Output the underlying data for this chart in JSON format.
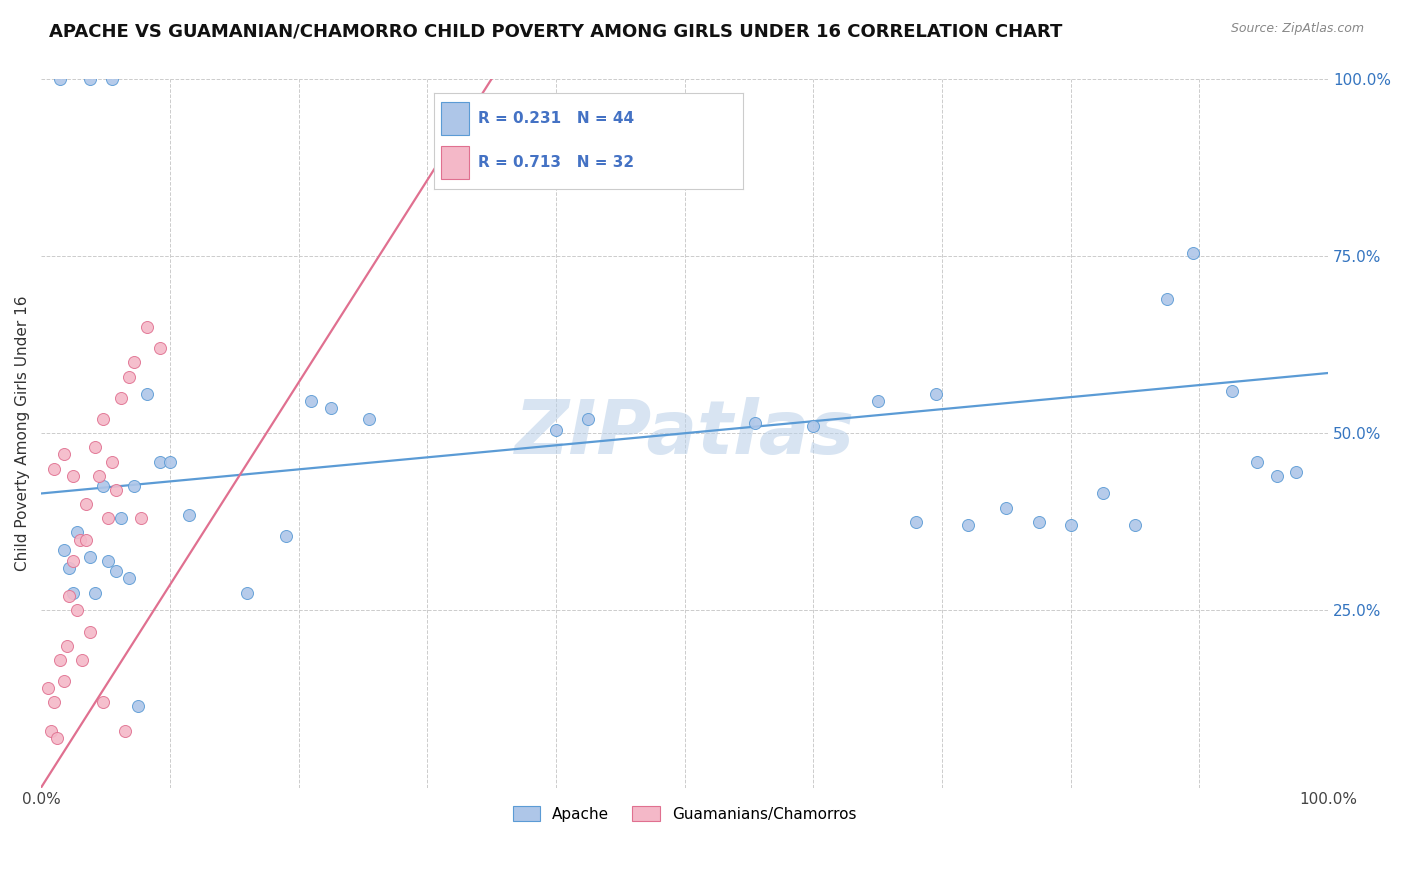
{
  "title": "APACHE VS GUAMANIAN/CHAMORRO CHILD POVERTY AMONG GIRLS UNDER 16 CORRELATION CHART",
  "source": "Source: ZipAtlas.com",
  "ylabel": "Child Poverty Among Girls Under 16",
  "xlim": [
    0,
    1
  ],
  "ylim": [
    0,
    1
  ],
  "watermark": "ZIPatlas",
  "apache_color": "#aec6e8",
  "apache_edge_color": "#5b9bd5",
  "guam_color": "#f4b8c8",
  "guam_edge_color": "#e07090",
  "apache_R": 0.231,
  "apache_N": 44,
  "guam_R": 0.713,
  "guam_N": 32,
  "legend_color": "#4472c4",
  "apache_line_color": "#5b9bd5",
  "guam_line_color": "#e07090",
  "grid_color": "#cccccc",
  "background_color": "#ffffff",
  "title_fontsize": 13,
  "axis_label_fontsize": 11,
  "tick_fontsize": 11,
  "marker_size": 75,
  "apache_x": [
    0.018,
    0.022,
    0.025,
    0.028,
    0.038,
    0.042,
    0.048,
    0.052,
    0.058,
    0.062,
    0.068,
    0.072,
    0.082,
    0.092,
    0.1,
    0.115,
    0.16,
    0.19,
    0.21,
    0.225,
    0.255,
    0.4,
    0.425,
    0.555,
    0.6,
    0.65,
    0.68,
    0.695,
    0.72,
    0.75,
    0.775,
    0.8,
    0.825,
    0.85,
    0.875,
    0.895,
    0.925,
    0.945,
    0.96,
    0.975,
    0.015,
    0.038,
    0.055,
    0.075
  ],
  "apache_y": [
    0.335,
    0.31,
    0.275,
    0.36,
    0.325,
    0.275,
    0.425,
    0.32,
    0.305,
    0.38,
    0.295,
    0.425,
    0.555,
    0.46,
    0.46,
    0.385,
    0.275,
    0.355,
    0.545,
    0.535,
    0.52,
    0.505,
    0.52,
    0.515,
    0.51,
    0.545,
    0.375,
    0.555,
    0.37,
    0.395,
    0.375,
    0.37,
    0.415,
    0.37,
    0.69,
    0.755,
    0.56,
    0.46,
    0.44,
    0.445,
    1.0,
    1.0,
    1.0,
    0.115
  ],
  "guam_x": [
    0.005,
    0.008,
    0.01,
    0.012,
    0.015,
    0.018,
    0.02,
    0.022,
    0.025,
    0.028,
    0.03,
    0.032,
    0.035,
    0.038,
    0.042,
    0.045,
    0.048,
    0.052,
    0.055,
    0.058,
    0.062,
    0.068,
    0.072,
    0.078,
    0.082,
    0.092,
    0.01,
    0.018,
    0.025,
    0.035,
    0.048,
    0.065
  ],
  "guam_y": [
    0.14,
    0.08,
    0.12,
    0.07,
    0.18,
    0.15,
    0.2,
    0.27,
    0.32,
    0.25,
    0.35,
    0.18,
    0.4,
    0.22,
    0.48,
    0.44,
    0.52,
    0.38,
    0.46,
    0.42,
    0.55,
    0.58,
    0.6,
    0.38,
    0.65,
    0.62,
    0.45,
    0.47,
    0.44,
    0.35,
    0.12,
    0.08
  ]
}
